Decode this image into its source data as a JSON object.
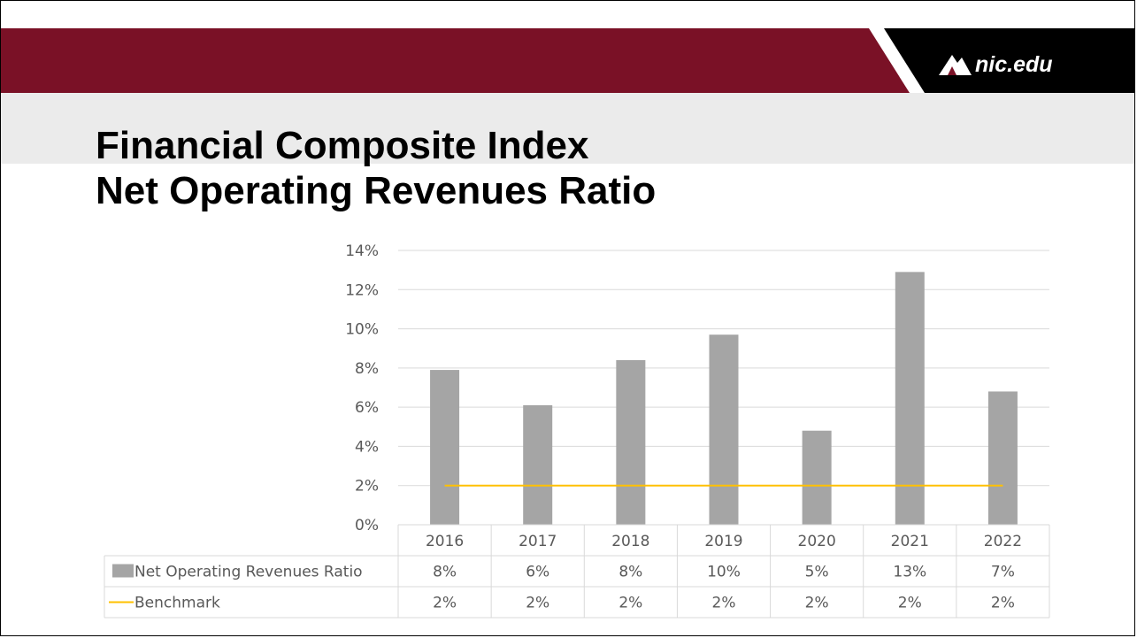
{
  "header": {
    "logo_text": "nic.edu",
    "colors": {
      "maroon": "#7a1126",
      "light_band": "#ebebeb",
      "black": "#000000"
    }
  },
  "title": {
    "line1": "Financial Composite Index",
    "line2": "Net Operating Revenues Ratio"
  },
  "chart_data": {
    "type": "bar",
    "categories": [
      "2016",
      "2017",
      "2018",
      "2019",
      "2020",
      "2021",
      "2022"
    ],
    "series": [
      {
        "name": "Net Operating Revenues Ratio",
        "type": "bar",
        "color": "#a5a5a5",
        "values": [
          0.079,
          0.061,
          0.084,
          0.097,
          0.048,
          0.129,
          0.068
        ],
        "labels": [
          "8%",
          "6%",
          "8%",
          "10%",
          "5%",
          "13%",
          "7%"
        ]
      },
      {
        "name": "Benchmark",
        "type": "line",
        "color": "#ffc000",
        "values": [
          0.02,
          0.02,
          0.02,
          0.02,
          0.02,
          0.02,
          0.02
        ],
        "labels": [
          "2%",
          "2%",
          "2%",
          "2%",
          "2%",
          "2%",
          "2%"
        ]
      }
    ],
    "ylim": [
      0,
      0.14
    ],
    "y_ticks": [
      "0%",
      "2%",
      "4%",
      "6%",
      "8%",
      "10%",
      "12%",
      "14%"
    ],
    "grid": true,
    "legend": "data table below chart",
    "gridline_color": "#d9d9d9",
    "text_color": "#595959"
  }
}
